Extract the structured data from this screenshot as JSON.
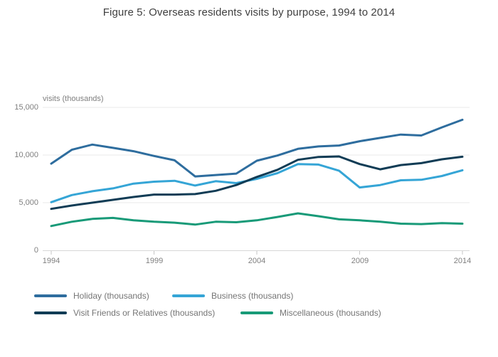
{
  "title": "Figure 5: Overseas residents visits by purpose, 1994 to 2014",
  "colors": {
    "grid": "#e8e8e8",
    "axis_line": "#d6d6d6",
    "tick_mark": "#c6c6c6",
    "axis_text": "#7f7f7f",
    "title_text": "#3f3f3f"
  },
  "chart_data": {
    "type": "line",
    "title": "Figure 5: Overseas residents visits by purpose, 1994 to 2014",
    "xlabel": "",
    "ylabel": "visits (thousands)",
    "ylim": [
      0,
      15000
    ],
    "grid": true,
    "legend_position": "bottom",
    "ytick_values": [
      0,
      5000,
      10000,
      15000
    ],
    "ytick_labels": [
      "0",
      "5,000",
      "10,000",
      "15,000"
    ],
    "xtick_values": [
      1994,
      1999,
      2004,
      2009,
      2014
    ],
    "xtick_labels": [
      "1994",
      "1999",
      "2004",
      "2009",
      "2014"
    ],
    "x": [
      1994,
      1995,
      1996,
      1997,
      1998,
      1999,
      2000,
      2001,
      2002,
      2003,
      2004,
      2005,
      2006,
      2007,
      2008,
      2009,
      2010,
      2011,
      2012,
      2013,
      2014
    ],
    "series": [
      {
        "name": "Holiday (thousands)",
        "color": "#2e6d9e",
        "values": [
          9100,
          10550,
          11100,
          10750,
          10400,
          9900,
          9450,
          7750,
          7900,
          8050,
          9400,
          9950,
          10650,
          10900,
          11000,
          11450,
          11800,
          12150,
          12050,
          12900,
          13700
        ]
      },
      {
        "name": "Business (thousands)",
        "color": "#35a5d6",
        "values": [
          5050,
          5800,
          6200,
          6500,
          7000,
          7200,
          7300,
          6800,
          7250,
          7050,
          7500,
          8100,
          9050,
          9000,
          8350,
          6600,
          6850,
          7350,
          7400,
          7800,
          8400
        ]
      },
      {
        "name": "Visit Friends or Relatives (thousands)",
        "color": "#113c55",
        "values": [
          4350,
          4700,
          5000,
          5300,
          5600,
          5850,
          5850,
          5900,
          6250,
          6850,
          7700,
          8450,
          9500,
          9800,
          9850,
          9050,
          8500,
          8950,
          9150,
          9550,
          9820
        ]
      },
      {
        "name": "Miscellaneous (thousands)",
        "color": "#189a78",
        "values": [
          2550,
          3000,
          3300,
          3400,
          3150,
          3000,
          2900,
          2700,
          3000,
          2950,
          3150,
          3500,
          3880,
          3580,
          3250,
          3150,
          3000,
          2800,
          2750,
          2850,
          2800
        ]
      }
    ]
  }
}
